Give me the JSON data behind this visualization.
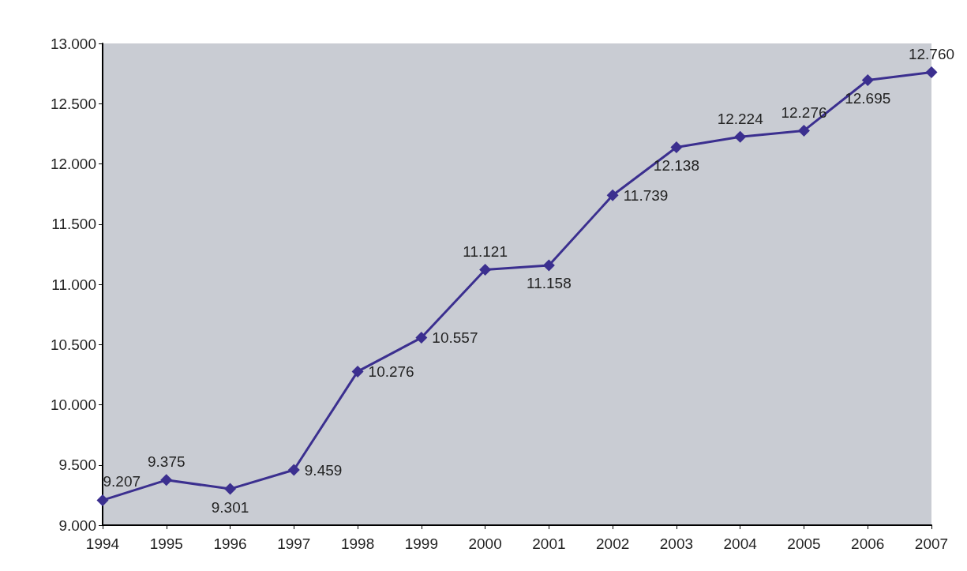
{
  "chart_data": {
    "type": "line",
    "categories": [
      "1994",
      "1995",
      "1996",
      "1997",
      "1998",
      "1999",
      "2000",
      "2001",
      "2002",
      "2003",
      "2004",
      "2005",
      "2006",
      "2007"
    ],
    "series": [
      {
        "color": "#3b2f8f",
        "values": [
          9207,
          9375,
          9301,
          9459,
          10276,
          10557,
          11121,
          11158,
          11739,
          12138,
          12224,
          12276,
          12695,
          12760
        ],
        "value_labels": [
          "9.207",
          "9.375",
          "9.301",
          "9.459",
          "10.276",
          "10.557",
          "11.121",
          "11.158",
          "11.739",
          "12.138",
          "12.224",
          "12.276",
          "12.695",
          "12.760"
        ]
      }
    ],
    "ylim": [
      9000,
      13000
    ],
    "yticks": [
      {
        "value": 9000,
        "label": "9.000"
      },
      {
        "value": 9500,
        "label": "9.500"
      },
      {
        "value": 10000,
        "label": "10.000"
      },
      {
        "value": 10500,
        "label": "10.500"
      },
      {
        "value": 11000,
        "label": "11.000"
      },
      {
        "value": 11500,
        "label": "11.500"
      },
      {
        "value": 12000,
        "label": "12.000"
      },
      {
        "value": 12500,
        "label": "12.500"
      },
      {
        "value": 13000,
        "label": "13.000"
      }
    ],
    "grid": false,
    "marker": "diamond",
    "line_style": "solid"
  }
}
